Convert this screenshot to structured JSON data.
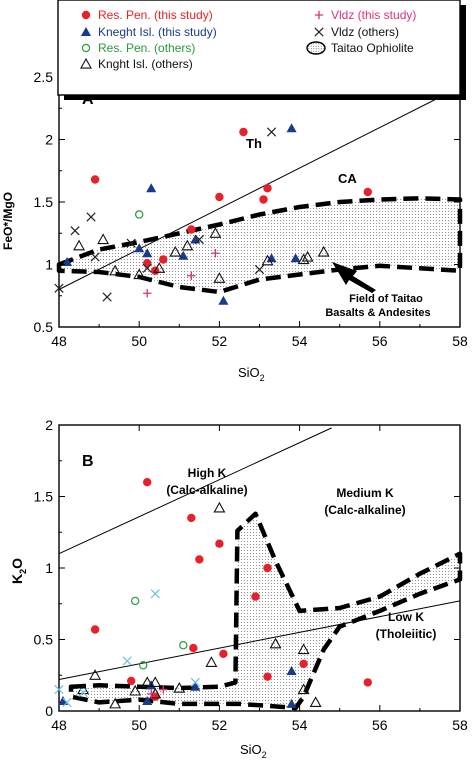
{
  "chart_data": [
    {
      "type": "scatter",
      "panel_label": "A",
      "xlabel": "SiO",
      "xlabel_sub": "2",
      "ylabel": "FeO*/MgO",
      "xlim": [
        48,
        58
      ],
      "ylim": [
        0.5,
        2.5
      ],
      "x_ticks": [
        "48",
        "50",
        "52",
        "54",
        "56",
        "58"
      ],
      "y_ticks": [
        "0.5",
        "1",
        "1.5",
        "2",
        "2.5"
      ],
      "legend_position": "top",
      "annotations": {
        "th": "Th",
        "ca": "CA",
        "field_line1": "Field of Taitao",
        "field_line2": "Basalts & Andesites"
      },
      "divider_line": {
        "x": [
          48,
          58
        ],
        "y": [
          0.8,
          2.42
        ]
      },
      "series": [
        {
          "name": "Res. Pen. (this study)",
          "marker": "filled-circle",
          "color": "#e8202a",
          "points": [
            [
              48.9,
              1.68
            ],
            [
              50.2,
              1.01
            ],
            [
              50.4,
              0.95
            ],
            [
              50.6,
              1.04
            ],
            [
              51.3,
              1.28
            ],
            [
              52.0,
              1.54
            ],
            [
              52.6,
              2.06
            ],
            [
              53.1,
              1.52
            ],
            [
              53.2,
              1.61
            ],
            [
              55.7,
              1.58
            ]
          ]
        },
        {
          "name": "Kneght Isl. (this study)",
          "marker": "filled-triangle",
          "color": "#1a3a8c",
          "points": [
            [
              48.2,
              1.02
            ],
            [
              50.0,
              1.13
            ],
            [
              50.2,
              1.09
            ],
            [
              50.3,
              1.61
            ],
            [
              51.1,
              1.07
            ],
            [
              51.4,
              1.2
            ],
            [
              52.1,
              0.71
            ],
            [
              53.3,
              1.05
            ],
            [
              53.8,
              2.09
            ],
            [
              53.9,
              1.05
            ]
          ]
        },
        {
          "name": "Res. Pen. (others)",
          "marker": "open-circle",
          "color": "#2a9a3a",
          "points": [
            [
              50.0,
              1.4
            ]
          ]
        },
        {
          "name": "Knght Isl. (others)",
          "marker": "open-triangle",
          "color": "#111111",
          "points": [
            [
              48.5,
              1.15
            ],
            [
              49.1,
              1.2
            ],
            [
              49.4,
              0.95
            ],
            [
              50.0,
              0.92
            ],
            [
              50.5,
              0.97
            ],
            [
              50.9,
              1.1
            ],
            [
              51.2,
              1.15
            ],
            [
              51.9,
              1.25
            ],
            [
              52.0,
              0.89
            ],
            [
              53.2,
              1.03
            ],
            [
              54.1,
              1.04
            ],
            [
              54.2,
              1.06
            ],
            [
              54.6,
              1.1
            ]
          ]
        },
        {
          "name": "Vldz (this study)",
          "marker": "plus",
          "color": "#e0307a",
          "points": [
            [
              50.2,
              0.77
            ],
            [
              51.3,
              0.91
            ],
            [
              51.9,
              1.09
            ]
          ]
        },
        {
          "name": "Vldz (others)",
          "marker": "x",
          "color": "#222222",
          "points": [
            [
              48.0,
              0.81
            ],
            [
              48.4,
              1.27
            ],
            [
              48.8,
              1.38
            ],
            [
              48.9,
              1.06
            ],
            [
              49.2,
              0.74
            ],
            [
              49.8,
              1.17
            ],
            [
              50.2,
              0.97
            ],
            [
              51.5,
              1.2
            ],
            [
              53.0,
              0.96
            ],
            [
              53.3,
              2.06
            ]
          ]
        }
      ],
      "region": {
        "name": "Taitao Ophiolite",
        "x": [
          48.0,
          49.0,
          50.0,
          51.0,
          52.0,
          53.0,
          54.0,
          55.0,
          56.0,
          57.0,
          58.0,
          58.0,
          57.0,
          56.0,
          55.0,
          54.0,
          53.0,
          52.0,
          51.0,
          50.0,
          49.0,
          48.0
        ],
        "y": [
          1.0,
          1.12,
          1.18,
          1.25,
          1.32,
          1.4,
          1.46,
          1.5,
          1.52,
          1.53,
          1.52,
          0.95,
          0.97,
          0.99,
          0.96,
          0.92,
          0.88,
          0.78,
          0.82,
          0.9,
          0.94,
          0.95
        ]
      }
    },
    {
      "type": "scatter",
      "panel_label": "B",
      "xlabel": "SiO",
      "xlabel_sub": "2",
      "ylabel": "K",
      "ylabel_sub": "2",
      "ylabel_tail": "O",
      "xlim": [
        48,
        58
      ],
      "ylim": [
        0,
        2
      ],
      "x_ticks": [
        "48",
        "50",
        "52",
        "54",
        "56",
        "58"
      ],
      "y_ticks": [
        "0",
        "0.5",
        "1",
        "1.5",
        "2"
      ],
      "annotations": {
        "high_k_1": "High K",
        "high_k_2": "(Calc-alkaline)",
        "med_k_1": "Medium K",
        "med_k_2": "(Calc-alkaline)",
        "low_k_1": "Low K",
        "low_k_2": "(Tholeiitic)"
      },
      "boundary_lines": [
        {
          "name": "high-medium",
          "x": [
            48,
            54.8
          ],
          "y": [
            1.1,
            1.98
          ]
        },
        {
          "name": "medium-low",
          "x": [
            48,
            58
          ],
          "y": [
            0.22,
            0.77
          ]
        }
      ],
      "series": [
        {
          "name": "Res. Pen. (this study)",
          "marker": "filled-circle",
          "color": "#e8202a",
          "points": [
            [
              48.9,
              0.57
            ],
            [
              49.8,
              0.21
            ],
            [
              50.2,
              1.6
            ],
            [
              50.4,
              0.1
            ],
            [
              51.3,
              1.35
            ],
            [
              51.35,
              0.44
            ],
            [
              51.5,
              1.06
            ],
            [
              52.0,
              1.17
            ],
            [
              52.1,
              0.4
            ],
            [
              52.9,
              0.8
            ],
            [
              53.2,
              1.0
            ],
            [
              53.2,
              0.24
            ],
            [
              54.1,
              0.33
            ],
            [
              55.7,
              0.2
            ]
          ]
        },
        {
          "name": "Kneght Isl. (this study)",
          "marker": "filled-triangle",
          "color": "#1a3a8c",
          "points": [
            [
              48.1,
              0.07
            ],
            [
              50.2,
              0.07
            ],
            [
              50.3,
              0.18
            ],
            [
              51.4,
              0.17
            ],
            [
              53.8,
              0.05
            ],
            [
              53.8,
              0.28
            ]
          ]
        },
        {
          "name": "Res. Pen. (others)",
          "marker": "open-circle",
          "color": "#2a9a3a",
          "points": [
            [
              49.9,
              0.77
            ],
            [
              50.1,
              0.32
            ],
            [
              51.1,
              0.46
            ]
          ]
        },
        {
          "name": "Knght Isl. (others)",
          "marker": "open-triangle",
          "color": "#111111",
          "points": [
            [
              48.6,
              0.15
            ],
            [
              48.9,
              0.25
            ],
            [
              49.4,
              0.05
            ],
            [
              49.9,
              0.14
            ],
            [
              50.2,
              0.2
            ],
            [
              50.4,
              0.2
            ],
            [
              50.4,
              0.12
            ],
            [
              51.0,
              0.16
            ],
            [
              51.8,
              0.34
            ],
            [
              52.0,
              1.42
            ],
            [
              53.4,
              0.47
            ],
            [
              54.1,
              0.43
            ],
            [
              54.1,
              0.15
            ],
            [
              54.4,
              0.06
            ]
          ]
        },
        {
          "name": "Vldz (this study)",
          "marker": "plus",
          "color": "#e0307a",
          "points": [
            [
              50.3,
              0.12
            ],
            [
              50.6,
              0.15
            ]
          ]
        },
        {
          "name": "Vldz (others)",
          "marker": "x",
          "color": "#6cc0e0",
          "points": [
            [
              48.0,
              0.15
            ],
            [
              48.2,
              0.06
            ],
            [
              48.6,
              0.13
            ],
            [
              49.7,
              0.35
            ],
            [
              50.4,
              0.82
            ],
            [
              51.4,
              0.2
            ]
          ]
        }
      ],
      "regions": [
        {
          "name": "Taitao Ophiolite",
          "x": [
            48.3,
            49.0,
            50.0,
            51.0,
            52.0,
            52.4,
            52.45,
            52.9,
            53.4,
            54.0,
            55.0,
            56.0,
            57.0,
            58.0,
            58.0,
            57.0,
            56.0,
            55.0,
            54.6,
            54.1,
            53.9,
            53.5,
            52.5,
            51.0,
            50.0,
            49.0,
            48.3
          ],
          "y": [
            0.17,
            0.18,
            0.17,
            0.16,
            0.17,
            0.2,
            1.26,
            1.38,
            1.05,
            0.7,
            0.72,
            0.8,
            0.96,
            1.1,
            0.92,
            0.82,
            0.7,
            0.59,
            0.43,
            0.1,
            0.02,
            0.03,
            0.05,
            0.05,
            0.08,
            0.06,
            0.1
          ]
        }
      ]
    }
  ]
}
